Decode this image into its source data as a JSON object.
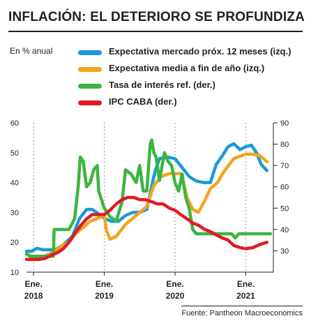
{
  "header": {
    "title": "INFLACIÓN: EL DETERIORO SE PROFUNDIZA",
    "unit": "En % anual"
  },
  "footer": {
    "source": "Fuente: Pantheon Macroeconomics"
  },
  "colors": {
    "blue": "#1a9ad7",
    "orange": "#f2a51e",
    "green": "#3cb540",
    "red": "#e01a25",
    "text": "#231f20"
  },
  "legend": [
    {
      "label": "Expectativa mercado próx. 12 meses (izq.)",
      "color": "#1a9ad7"
    },
    {
      "label": "Expectativa media a fin de año (izq.)",
      "color": "#f2a51e"
    },
    {
      "label": "Tasa de interés ref. (der.)",
      "color": "#3cb540"
    },
    {
      "label": "IPC CABA (der.)",
      "color": "#e01a25"
    }
  ],
  "chart_data": {
    "type": "line",
    "x_labels": [
      {
        "x": 2018.0,
        "line1": "Ene.",
        "line2": "2018"
      },
      {
        "x": 2019.0,
        "line1": "Ene.",
        "line2": "2019"
      },
      {
        "x": 2020.0,
        "line1": "Ene.",
        "line2": "2020"
      },
      {
        "x": 2021.0,
        "line1": "Ene.",
        "line2": "2021"
      }
    ],
    "xlim": [
      2017.9,
      2021.35
    ],
    "y_left": {
      "lim": [
        10,
        60
      ],
      "ticks": [
        10,
        20,
        30,
        40,
        50,
        60
      ]
    },
    "y_right": {
      "lim": [
        20,
        90
      ],
      "ticks": [
        30,
        40,
        50,
        60,
        70,
        80,
        90
      ]
    },
    "series": [
      {
        "name": "Expectativa mercado próx. 12 meses (izq.)",
        "axis": "left",
        "color": "#1a9ad7",
        "points": [
          [
            2017.9,
            17
          ],
          [
            2017.97,
            17
          ],
          [
            2018.05,
            18
          ],
          [
            2018.13,
            17.5
          ],
          [
            2018.3,
            17.5
          ],
          [
            2018.38,
            18.5
          ],
          [
            2018.46,
            20
          ],
          [
            2018.55,
            22
          ],
          [
            2018.65,
            28
          ],
          [
            2018.75,
            31
          ],
          [
            2018.83,
            31
          ],
          [
            2018.92,
            29.5
          ],
          [
            2019.0,
            28
          ],
          [
            2019.1,
            27
          ],
          [
            2019.2,
            27
          ],
          [
            2019.3,
            29
          ],
          [
            2019.4,
            30
          ],
          [
            2019.5,
            30
          ],
          [
            2019.6,
            31
          ],
          [
            2019.68,
            40
          ],
          [
            2019.72,
            44
          ],
          [
            2019.78,
            48
          ],
          [
            2019.9,
            48.5
          ],
          [
            2020.0,
            48
          ],
          [
            2020.1,
            45
          ],
          [
            2020.2,
            42
          ],
          [
            2020.3,
            40.5
          ],
          [
            2020.4,
            40
          ],
          [
            2020.5,
            40
          ],
          [
            2020.58,
            46
          ],
          [
            2020.67,
            49
          ],
          [
            2020.75,
            52
          ],
          [
            2020.83,
            53
          ],
          [
            2020.92,
            51
          ],
          [
            2021.0,
            52
          ],
          [
            2021.08,
            52.5
          ],
          [
            2021.15,
            50
          ],
          [
            2021.22,
            46
          ],
          [
            2021.3,
            44
          ]
        ]
      },
      {
        "name": "Expectativa media a fin de año (izq.)",
        "axis": "left",
        "color": "#f2a51e",
        "points": [
          [
            2017.9,
            16
          ],
          [
            2018.0,
            15
          ],
          [
            2018.08,
            15
          ],
          [
            2018.17,
            15.5
          ],
          [
            2018.3,
            17
          ],
          [
            2018.4,
            19
          ],
          [
            2018.5,
            20
          ],
          [
            2018.6,
            23
          ],
          [
            2018.7,
            25
          ],
          [
            2018.8,
            27
          ],
          [
            2018.9,
            28
          ],
          [
            2019.0,
            29
          ],
          [
            2019.03,
            24
          ],
          [
            2019.08,
            21
          ],
          [
            2019.17,
            22
          ],
          [
            2019.3,
            26
          ],
          [
            2019.4,
            28
          ],
          [
            2019.5,
            30
          ],
          [
            2019.6,
            32
          ],
          [
            2019.7,
            39
          ],
          [
            2019.8,
            42
          ],
          [
            2019.92,
            43
          ],
          [
            2020.0,
            43
          ],
          [
            2020.08,
            43
          ],
          [
            2020.17,
            35
          ],
          [
            2020.25,
            31
          ],
          [
            2020.33,
            30
          ],
          [
            2020.42,
            34
          ],
          [
            2020.5,
            38
          ],
          [
            2020.6,
            40
          ],
          [
            2020.7,
            44
          ],
          [
            2020.83,
            48
          ],
          [
            2021.0,
            49.5
          ],
          [
            2021.1,
            49.5
          ],
          [
            2021.2,
            49
          ],
          [
            2021.3,
            47
          ]
        ]
      },
      {
        "name": "Tasa de interés ref. (der.)",
        "axis": "right",
        "color": "#3cb540",
        "points": [
          [
            2017.9,
            28.5
          ],
          [
            2017.95,
            27.5
          ],
          [
            2018.0,
            27.5
          ],
          [
            2018.28,
            27.5
          ],
          [
            2018.29,
            40
          ],
          [
            2018.4,
            40
          ],
          [
            2018.5,
            40
          ],
          [
            2018.58,
            45
          ],
          [
            2018.63,
            60
          ],
          [
            2018.66,
            74
          ],
          [
            2018.7,
            72
          ],
          [
            2018.75,
            60
          ],
          [
            2018.8,
            62
          ],
          [
            2018.85,
            68
          ],
          [
            2018.9,
            70
          ],
          [
            2018.92,
            58
          ],
          [
            2019.0,
            50
          ],
          [
            2019.08,
            46
          ],
          [
            2019.17,
            44
          ],
          [
            2019.25,
            53
          ],
          [
            2019.3,
            68
          ],
          [
            2019.38,
            66
          ],
          [
            2019.45,
            62
          ],
          [
            2019.5,
            70
          ],
          [
            2019.55,
            58
          ],
          [
            2019.6,
            58
          ],
          [
            2019.65,
            80
          ],
          [
            2019.67,
            82
          ],
          [
            2019.7,
            76
          ],
          [
            2019.73,
            74
          ],
          [
            2019.78,
            63
          ],
          [
            2019.85,
            76
          ],
          [
            2019.9,
            72
          ],
          [
            2019.95,
            70
          ],
          [
            2020.0,
            62
          ],
          [
            2020.05,
            58
          ],
          [
            2020.1,
            66
          ],
          [
            2020.15,
            55
          ],
          [
            2020.2,
            50
          ],
          [
            2020.25,
            40
          ],
          [
            2020.3,
            38
          ],
          [
            2020.6,
            38
          ],
          [
            2020.7,
            38
          ],
          [
            2020.8,
            38
          ],
          [
            2020.85,
            36
          ],
          [
            2020.9,
            38
          ],
          [
            2021.0,
            38
          ],
          [
            2021.35,
            38
          ]
        ]
      },
      {
        "name": "IPC CABA (der.)",
        "axis": "right",
        "color": "#e01a25",
        "points": [
          [
            2017.9,
            26
          ],
          [
            2018.0,
            26
          ],
          [
            2018.08,
            26
          ],
          [
            2018.17,
            26.5
          ],
          [
            2018.25,
            28
          ],
          [
            2018.33,
            29
          ],
          [
            2018.42,
            31
          ],
          [
            2018.5,
            34
          ],
          [
            2018.58,
            38
          ],
          [
            2018.67,
            42
          ],
          [
            2018.75,
            45
          ],
          [
            2018.83,
            47
          ],
          [
            2018.92,
            47
          ],
          [
            2019.0,
            47
          ],
          [
            2019.08,
            49
          ],
          [
            2019.17,
            52
          ],
          [
            2019.25,
            54
          ],
          [
            2019.33,
            55
          ],
          [
            2019.42,
            55
          ],
          [
            2019.5,
            54
          ],
          [
            2019.58,
            54
          ],
          [
            2019.67,
            53
          ],
          [
            2019.75,
            52
          ],
          [
            2019.83,
            52
          ],
          [
            2019.92,
            50
          ],
          [
            2020.0,
            49
          ],
          [
            2020.08,
            47
          ],
          [
            2020.17,
            45
          ],
          [
            2020.25,
            43
          ],
          [
            2020.33,
            42
          ],
          [
            2020.42,
            40
          ],
          [
            2020.5,
            39
          ],
          [
            2020.58,
            37.5
          ],
          [
            2020.67,
            36
          ],
          [
            2020.75,
            35
          ],
          [
            2020.83,
            32.5
          ],
          [
            2020.92,
            31.5
          ],
          [
            2021.0,
            31
          ],
          [
            2021.1,
            31.5
          ],
          [
            2021.2,
            33
          ],
          [
            2021.3,
            34
          ]
        ]
      }
    ]
  }
}
